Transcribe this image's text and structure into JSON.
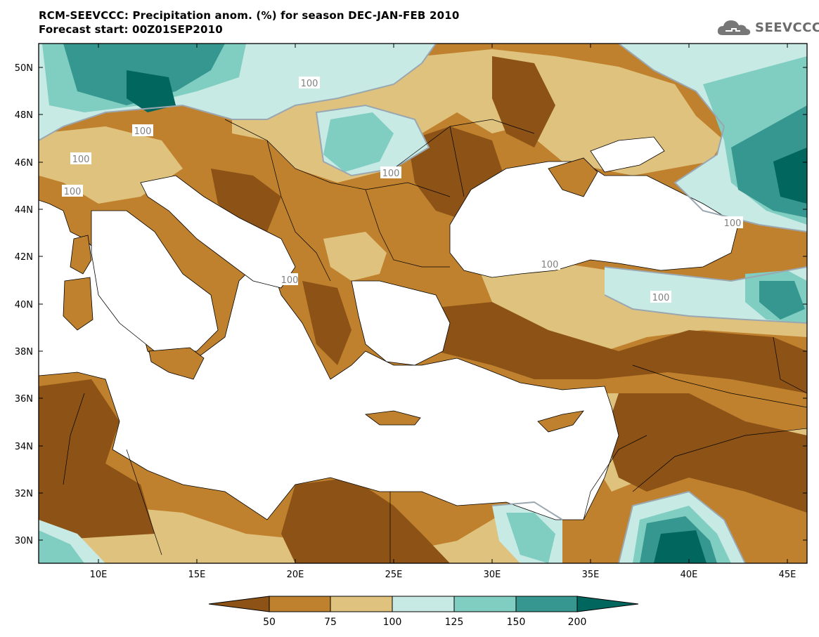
{
  "title": {
    "line1": "RCM-SEEVCCC: Precipitation anom. (%) for season DEC-JAN-FEB 2010",
    "line2": "Forecast start: 00Z01SEP2010"
  },
  "logo": {
    "text": "SEEVCCC",
    "icon": "cloud-icon"
  },
  "map": {
    "lat_labels": [
      "50N",
      "48N",
      "46N",
      "44N",
      "42N",
      "40N",
      "38N",
      "36N",
      "34N",
      "32N",
      "30N"
    ],
    "lon_labels": [
      "10E",
      "15E",
      "20E",
      "25E",
      "30E",
      "35E",
      "40E",
      "45E"
    ],
    "contour_label": "100"
  },
  "legend": {
    "colors": {
      "lt50": "#8c5216",
      "b50_75": "#bf812d",
      "b75_100": "#dfc27d",
      "b100_125": "#c7eae5",
      "b125_150": "#80cdc1",
      "b150_200": "#35978f",
      "gt200": "#01665e",
      "sea": "#ffffff",
      "contour": "#9aa7b0"
    },
    "tick_labels": [
      "50",
      "75",
      "100",
      "125",
      "150",
      "200"
    ]
  }
}
